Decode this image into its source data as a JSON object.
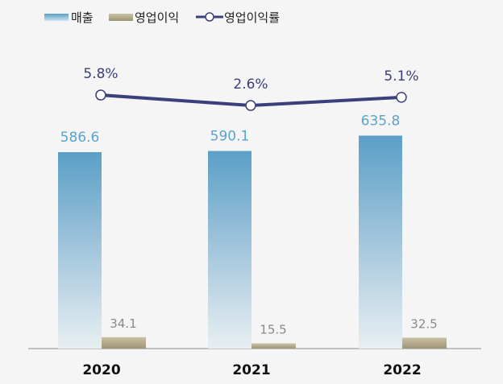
{
  "chart_data": {
    "type": "bar+line",
    "categories": [
      "2020",
      "2021",
      "2022"
    ],
    "series": [
      {
        "name": "매출",
        "type": "bar",
        "values": [
          586.6,
          590.1,
          635.8
        ],
        "color": "#5b9fc7",
        "label_color": "#5aa3cc"
      },
      {
        "name": "영업이익",
        "type": "bar",
        "values": [
          34.1,
          15.5,
          32.5
        ],
        "color": "#b0a88a",
        "label_color": "#8a8a8a"
      },
      {
        "name": "영업이익률",
        "type": "line",
        "values": [
          5.8,
          2.6,
          5.1
        ],
        "labels": [
          "5.8%",
          "2.6%",
          "5.1%"
        ],
        "color": "#3b3f7c"
      }
    ],
    "legend": "top-left",
    "grid": false
  }
}
